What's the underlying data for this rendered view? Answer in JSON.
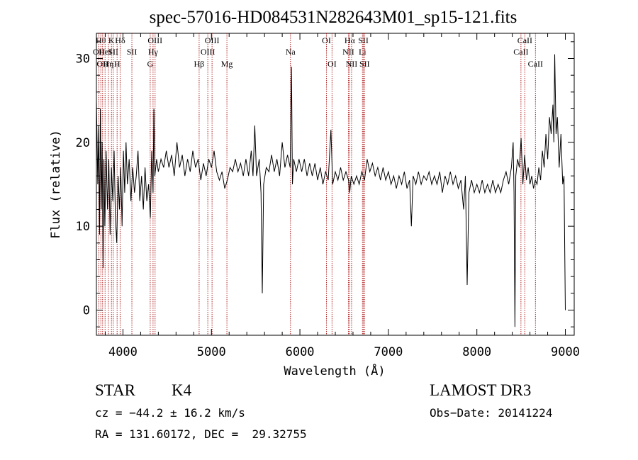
{
  "chart_data": {
    "type": "line",
    "title": "spec-57016-HD084531N282643M01_sp15-121.fits",
    "xlabel": "Wavelength (Å)",
    "ylabel": "Flux (relative)",
    "xlim": [
      3700,
      9100
    ],
    "ylim": [
      -3,
      33
    ],
    "x_ticks": [
      4000,
      5000,
      6000,
      7000,
      8000,
      9000
    ],
    "y_ticks": [
      0,
      10,
      20,
      30
    ],
    "grid": false,
    "series": [
      {
        "values": [
          [
            3700,
            25.0
          ],
          [
            3715,
            15.0
          ],
          [
            3725,
            22.0
          ],
          [
            3735,
            9.0
          ],
          [
            3745,
            24.0
          ],
          [
            3755,
            12.0
          ],
          [
            3765,
            20.0
          ],
          [
            3775,
            5.0
          ],
          [
            3785,
            18.0
          ],
          [
            3795,
            10.0
          ],
          [
            3810,
            19.0
          ],
          [
            3825,
            12.0
          ],
          [
            3840,
            18.0
          ],
          [
            3855,
            9.0
          ],
          [
            3870,
            17.0
          ],
          [
            3885,
            13.0
          ],
          [
            3900,
            19.0
          ],
          [
            3915,
            11.0
          ],
          [
            3930,
            8.0
          ],
          [
            3945,
            16.0
          ],
          [
            3960,
            12.0
          ],
          [
            3975,
            17.0
          ],
          [
            3990,
            10.0
          ],
          [
            4005,
            19.0
          ],
          [
            4020,
            14.0
          ],
          [
            4035,
            20.0
          ],
          [
            4050,
            15.0
          ],
          [
            4070,
            18.0
          ],
          [
            4090,
            13.0
          ],
          [
            4110,
            17.0
          ],
          [
            4130,
            14.0
          ],
          [
            4150,
            16.0
          ],
          [
            4170,
            19.0
          ],
          [
            4190,
            13.0
          ],
          [
            4210,
            16.0
          ],
          [
            4230,
            12.0
          ],
          [
            4250,
            17.0
          ],
          [
            4270,
            13.0
          ],
          [
            4290,
            15.0
          ],
          [
            4310,
            11.0
          ],
          [
            4325,
            19.0
          ],
          [
            4340,
            14.0
          ],
          [
            4350,
            24.0
          ],
          [
            4360,
            16.0
          ],
          [
            4380,
            18.0
          ],
          [
            4400,
            16.5
          ],
          [
            4430,
            18.0
          ],
          [
            4460,
            17.0
          ],
          [
            4490,
            19.0
          ],
          [
            4520,
            17.0
          ],
          [
            4550,
            18.5
          ],
          [
            4580,
            16.0
          ],
          [
            4610,
            20.0
          ],
          [
            4640,
            17.0
          ],
          [
            4670,
            18.5
          ],
          [
            4700,
            16.0
          ],
          [
            4730,
            18.0
          ],
          [
            4760,
            16.5
          ],
          [
            4790,
            19.0
          ],
          [
            4820,
            17.0
          ],
          [
            4850,
            18.0
          ],
          [
            4880,
            15.5
          ],
          [
            4910,
            17.5
          ],
          [
            4940,
            16.0
          ],
          [
            4970,
            18.0
          ],
          [
            5000,
            17.0
          ],
          [
            5030,
            19.0
          ],
          [
            5060,
            16.5
          ],
          [
            5090,
            15.5
          ],
          [
            5120,
            16.5
          ],
          [
            5150,
            14.5
          ],
          [
            5180,
            15.5
          ],
          [
            5210,
            17.0
          ],
          [
            5240,
            16.5
          ],
          [
            5270,
            18.0
          ],
          [
            5300,
            16.5
          ],
          [
            5330,
            17.5
          ],
          [
            5360,
            16.0
          ],
          [
            5390,
            18.0
          ],
          [
            5420,
            16.0
          ],
          [
            5450,
            19.0
          ],
          [
            5470,
            16.0
          ],
          [
            5490,
            22.0
          ],
          [
            5510,
            16.0
          ],
          [
            5540,
            18.0
          ],
          [
            5560,
            14.0
          ],
          [
            5575,
            2.0
          ],
          [
            5590,
            15.0
          ],
          [
            5620,
            17.0
          ],
          [
            5650,
            16.5
          ],
          [
            5680,
            18.5
          ],
          [
            5710,
            16.5
          ],
          [
            5740,
            18.0
          ],
          [
            5770,
            16.0
          ],
          [
            5800,
            20.0
          ],
          [
            5830,
            17.0
          ],
          [
            5860,
            18.5
          ],
          [
            5890,
            17.0
          ],
          [
            5905,
            29.0
          ],
          [
            5915,
            15.0
          ],
          [
            5930,
            18.0
          ],
          [
            5960,
            16.5
          ],
          [
            5990,
            18.0
          ],
          [
            6020,
            16.5
          ],
          [
            6050,
            18.0
          ],
          [
            6080,
            16.0
          ],
          [
            6110,
            17.5
          ],
          [
            6140,
            16.0
          ],
          [
            6170,
            17.5
          ],
          [
            6200,
            15.5
          ],
          [
            6230,
            17.0
          ],
          [
            6260,
            15.0
          ],
          [
            6290,
            16.5
          ],
          [
            6320,
            15.5
          ],
          [
            6350,
            21.5
          ],
          [
            6370,
            15.0
          ],
          [
            6400,
            16.5
          ],
          [
            6430,
            15.5
          ],
          [
            6460,
            17.0
          ],
          [
            6490,
            15.5
          ],
          [
            6520,
            16.5
          ],
          [
            6550,
            15.5
          ],
          [
            6563,
            14.0
          ],
          [
            6580,
            16.0
          ],
          [
            6610,
            15.0
          ],
          [
            6640,
            16.0
          ],
          [
            6670,
            15.0
          ],
          [
            6700,
            16.5
          ],
          [
            6730,
            15.5
          ],
          [
            6760,
            18.0
          ],
          [
            6790,
            16.5
          ],
          [
            6820,
            17.5
          ],
          [
            6850,
            16.0
          ],
          [
            6880,
            17.0
          ],
          [
            6910,
            15.5
          ],
          [
            6940,
            17.0
          ],
          [
            6970,
            15.5
          ],
          [
            7000,
            16.5
          ],
          [
            7030,
            15.0
          ],
          [
            7060,
            16.0
          ],
          [
            7090,
            14.5
          ],
          [
            7120,
            16.0
          ],
          [
            7150,
            15.0
          ],
          [
            7180,
            16.5
          ],
          [
            7210,
            14.5
          ],
          [
            7240,
            15.5
          ],
          [
            7260,
            10.0
          ],
          [
            7280,
            16.0
          ],
          [
            7310,
            15.0
          ],
          [
            7340,
            16.5
          ],
          [
            7370,
            15.0
          ],
          [
            7400,
            16.0
          ],
          [
            7430,
            15.5
          ],
          [
            7460,
            16.5
          ],
          [
            7490,
            15.0
          ],
          [
            7520,
            16.0
          ],
          [
            7550,
            15.0
          ],
          [
            7580,
            16.5
          ],
          [
            7610,
            14.0
          ],
          [
            7640,
            16.0
          ],
          [
            7670,
            15.0
          ],
          [
            7700,
            16.5
          ],
          [
            7730,
            15.0
          ],
          [
            7760,
            16.0
          ],
          [
            7790,
            14.5
          ],
          [
            7820,
            15.5
          ],
          [
            7850,
            12.0
          ],
          [
            7870,
            16.0
          ],
          [
            7890,
            3.0
          ],
          [
            7910,
            14.0
          ],
          [
            7940,
            15.5
          ],
          [
            7970,
            14.0
          ],
          [
            8000,
            15.0
          ],
          [
            8030,
            14.0
          ],
          [
            8060,
            15.5
          ],
          [
            8090,
            14.0
          ],
          [
            8120,
            15.0
          ],
          [
            8150,
            14.0
          ],
          [
            8180,
            15.5
          ],
          [
            8210,
            14.0
          ],
          [
            8240,
            15.0
          ],
          [
            8270,
            14.0
          ],
          [
            8300,
            15.5
          ],
          [
            8330,
            16.5
          ],
          [
            8360,
            15.0
          ],
          [
            8390,
            17.0
          ],
          [
            8410,
            20.0
          ],
          [
            8420,
            14.0
          ],
          [
            8430,
            -2.0
          ],
          [
            8440,
            16.0
          ],
          [
            8460,
            18.0
          ],
          [
            8480,
            17.0
          ],
          [
            8500,
            20.5
          ],
          [
            8520,
            15.0
          ],
          [
            8540,
            18.5
          ],
          [
            8560,
            15.5
          ],
          [
            8580,
            17.0
          ],
          [
            8600,
            15.0
          ],
          [
            8620,
            16.0
          ],
          [
            8640,
            14.5
          ],
          [
            8660,
            15.5
          ],
          [
            8680,
            15.0
          ],
          [
            8700,
            17.0
          ],
          [
            8720,
            15.5
          ],
          [
            8740,
            19.0
          ],
          [
            8760,
            17.0
          ],
          [
            8780,
            21.0
          ],
          [
            8800,
            18.0
          ],
          [
            8820,
            23.0
          ],
          [
            8840,
            21.0
          ],
          [
            8860,
            24.5
          ],
          [
            8870,
            20.0
          ],
          [
            8880,
            30.5
          ],
          [
            8895,
            21.0
          ],
          [
            8910,
            23.0
          ],
          [
            8930,
            17.0
          ],
          [
            8950,
            21.0
          ],
          [
            8970,
            15.0
          ],
          [
            8985,
            16.0
          ],
          [
            9000,
            0.0
          ]
        ]
      }
    ],
    "line_color": "#000000",
    "marker_color": "#b22222",
    "line_markers": [
      {
        "w": 3750,
        "row": 1,
        "label": "Hθ"
      },
      {
        "w": 3727,
        "row": 2,
        "label": "OII"
      },
      {
        "w": 3770,
        "row": 3,
        "label": "OII"
      },
      {
        "w": 3798,
        "row": 2,
        "label": "HeI"
      },
      {
        "w": 3835,
        "row": 3,
        "label": "Hη"
      },
      {
        "w": 3870,
        "row": 1,
        "label": "K"
      },
      {
        "w": 3890,
        "row": 2,
        "label": "SII"
      },
      {
        "w": 3934,
        "row": 3,
        "label": "H"
      },
      {
        "w": 3968,
        "row": 1,
        "label": "Hδ"
      },
      {
        "w": 4101,
        "row": 2,
        "label": "SII"
      },
      {
        "w": 4308,
        "row": 3,
        "label": "G"
      },
      {
        "w": 4340,
        "row": 2,
        "label": "Hγ"
      },
      {
        "w": 4363,
        "row": 1,
        "label": "OIII"
      },
      {
        "w": 4861,
        "row": 3,
        "label": "Hβ"
      },
      {
        "w": 4959,
        "row": 2,
        "label": "OIII"
      },
      {
        "w": 5007,
        "row": 1,
        "label": "OIII"
      },
      {
        "w": 5175,
        "row": 3,
        "label": "Mg"
      },
      {
        "w": 5893,
        "row": 2,
        "label": "Na"
      },
      {
        "w": 6300,
        "row": 1,
        "label": "OI"
      },
      {
        "w": 6363,
        "row": 3,
        "label": "OI"
      },
      {
        "w": 6548,
        "row": 2,
        "label": "NII"
      },
      {
        "w": 6563,
        "row": 1,
        "label": "Hα"
      },
      {
        "w": 6584,
        "row": 3,
        "label": "NII"
      },
      {
        "w": 6707,
        "row": 2,
        "label": "Li"
      },
      {
        "w": 6717,
        "row": 1,
        "label": "SII"
      },
      {
        "w": 6731,
        "row": 3,
        "label": "SII"
      },
      {
        "w": 8498,
        "row": 2,
        "label": "CaII"
      },
      {
        "w": 8542,
        "row": 1,
        "label": "CaII"
      },
      {
        "w": 8662,
        "row": 3,
        "label": "CaII"
      }
    ]
  },
  "info": {
    "class": "STAR",
    "subclass": "K4",
    "survey": "LAMOST DR3",
    "cz": "cz = −44.2 ± 16.2 km/s",
    "obs_date": "Obs−Date: 20141224",
    "radec": "RA = 131.60172, DEC =  29.32755"
  }
}
